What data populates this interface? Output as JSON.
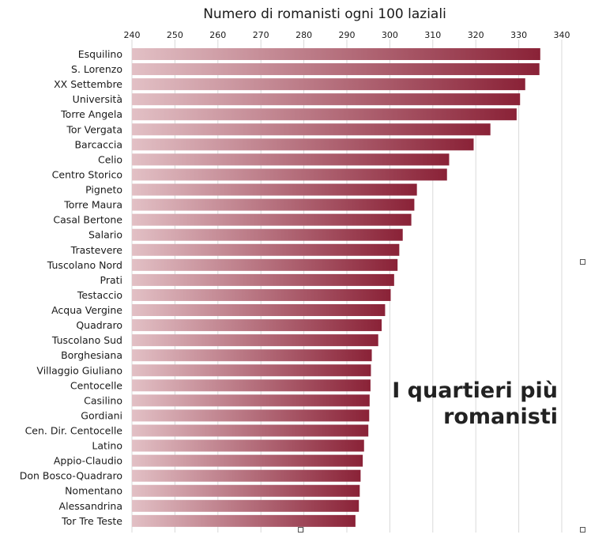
{
  "chart_data": {
    "type": "bar",
    "orientation": "horizontal",
    "title_lines": [
      "I quartieri più",
      "romanisti"
    ],
    "xlabel": "Numero di romanisti ogni 100 laziali",
    "ylabel": "",
    "xlim": [
      240,
      340
    ],
    "xticks": [
      "240",
      "250",
      "260",
      "270",
      "280",
      "290",
      "300",
      "310",
      "320",
      "330",
      "340"
    ],
    "grid": true,
    "legend": "none",
    "colors": {
      "bar_start": "#e2c0c5",
      "bar_end": "#8a2237"
    },
    "categories": [
      "Esquilino",
      "S. Lorenzo",
      "XX Settembre",
      "Università",
      "Torre Angela",
      "Tor Vergata",
      "Barcaccia",
      "Celio",
      "Centro Storico",
      "Pigneto",
      "Torre Maura",
      "Casal Bertone",
      "Salario",
      "Trastevere",
      "Tuscolano Nord",
      "Prati",
      "Testaccio",
      "Acqua Vergine",
      "Quadraro",
      "Tuscolano Sud",
      "Borghesiana",
      "Villaggio Giuliano",
      "Centocelle",
      "Casilino",
      "Gordiani",
      "Cen. Dir. Centocelle",
      "Latino",
      "Appio-Claudio",
      "Don Bosco-Quadraro",
      "Nomentano",
      "Alessandrina",
      "Tor Tre Teste"
    ],
    "values": [
      335.0,
      334.8,
      331.5,
      330.3,
      329.5,
      323.4,
      319.5,
      313.8,
      313.3,
      306.3,
      305.7,
      305.0,
      303.0,
      302.2,
      301.8,
      301.0,
      300.2,
      298.9,
      298.1,
      297.3,
      295.8,
      295.6,
      295.5,
      295.3,
      295.2,
      295.0,
      294.0,
      293.7,
      293.2,
      293.0,
      292.8,
      292.0
    ]
  }
}
